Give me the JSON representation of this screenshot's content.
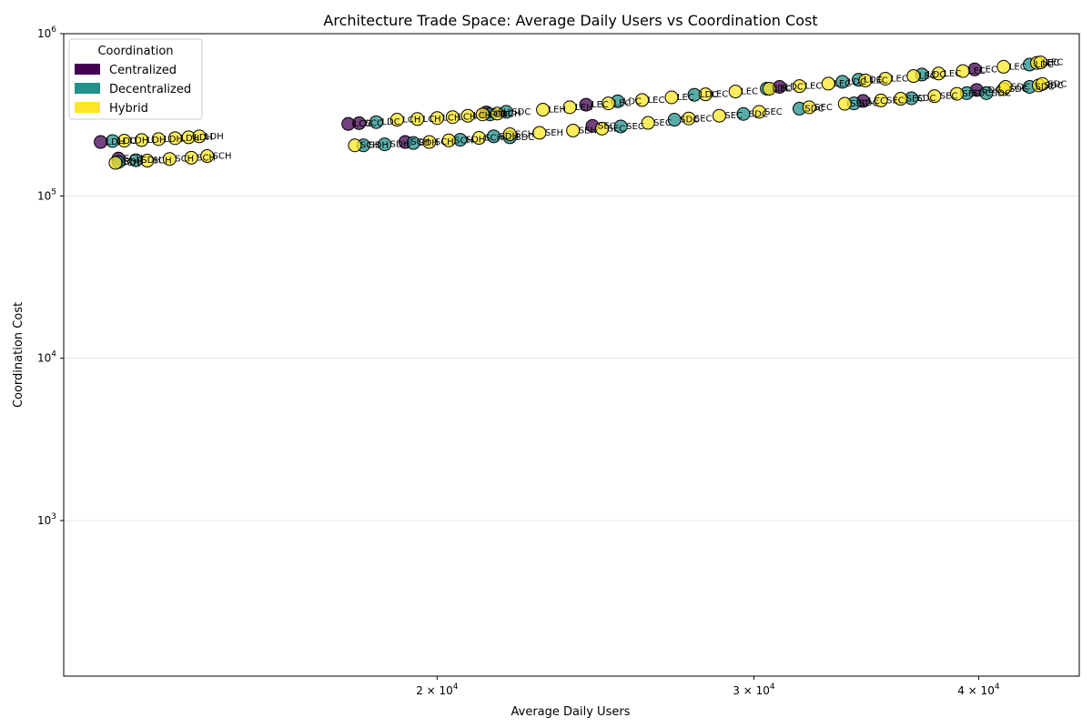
{
  "chart_data": {
    "type": "scatter",
    "title": "Architecture Trade Space: Average Daily Users vs Coordination Cost",
    "xlabel": "Average Daily Users",
    "ylabel": "Coordination Cost",
    "xscale": "log",
    "yscale": "log",
    "xlim": [
      12400,
      45500
    ],
    "ylim": [
      110,
      1000000
    ],
    "grid": "horizontal major",
    "x_ticks": [
      {
        "value": 20000,
        "base": "2 × 10",
        "exp": "4"
      },
      {
        "value": 30000,
        "base": "3 × 10",
        "exp": "4"
      },
      {
        "value": 40000,
        "base": "4 × 10",
        "exp": "4"
      }
    ],
    "y_ticks": [
      {
        "value": 1000,
        "base": "10",
        "exp": "3"
      },
      {
        "value": 10000,
        "base": "10",
        "exp": "4"
      },
      {
        "value": 100000,
        "base": "10",
        "exp": "5"
      },
      {
        "value": 1000000,
        "base": "10",
        "exp": "6"
      }
    ],
    "legend": {
      "title": "Coordination",
      "placement": "upper-left",
      "entries": [
        {
          "name": "Centralized",
          "color": "#440154"
        },
        {
          "name": "Decentralized",
          "color": "#21918c"
        },
        {
          "name": "Hybrid",
          "color": "#fde725"
        }
      ]
    },
    "colors": {
      "Centralized": "#440154",
      "Decentralized": "#21918c",
      "Hybrid": "#fde725"
    },
    "series": [
      {
        "name": "Centralized",
        "points": [
          {
            "x": 13000,
            "y": 215000,
            "label": "LDH"
          },
          {
            "x": 17850,
            "y": 278000,
            "label": "LCC"
          },
          {
            "x": 18100,
            "y": 281000,
            "label": "SCC"
          },
          {
            "x": 21300,
            "y": 327000,
            "label": "SEH"
          },
          {
            "x": 24200,
            "y": 365000,
            "label": "LEC"
          },
          {
            "x": 31000,
            "y": 470000,
            "label": "LDC"
          },
          {
            "x": 39800,
            "y": 602000,
            "label": "LEC"
          },
          {
            "x": 13300,
            "y": 170000,
            "label": "SCH"
          },
          {
            "x": 19200,
            "y": 215000,
            "label": "SCH"
          },
          {
            "x": 24400,
            "y": 270000,
            "label": "SEC"
          },
          {
            "x": 34500,
            "y": 385000,
            "label": "LCC"
          },
          {
            "x": 39900,
            "y": 450000,
            "label": "SDC"
          }
        ]
      },
      {
        "name": "Decentralized",
        "points": [
          {
            "x": 13200,
            "y": 218000,
            "label": "LDC"
          },
          {
            "x": 18500,
            "y": 285000,
            "label": "LDC"
          },
          {
            "x": 21400,
            "y": 318000,
            "label": "LDC"
          },
          {
            "x": 21850,
            "y": 330000,
            "label": "SDC"
          },
          {
            "x": 25200,
            "y": 383000,
            "label": "LDC"
          },
          {
            "x": 27800,
            "y": 420000,
            "label": "LDC"
          },
          {
            "x": 30500,
            "y": 458000,
            "label": "LDC"
          },
          {
            "x": 33600,
            "y": 505000,
            "label": "LDC"
          },
          {
            "x": 34300,
            "y": 520000,
            "label": "LDC"
          },
          {
            "x": 37200,
            "y": 560000,
            "label": "LDC"
          },
          {
            "x": 42700,
            "y": 645000,
            "label": "LDC"
          },
          {
            "x": 13300,
            "y": 162000,
            "label": "SDH"
          },
          {
            "x": 13600,
            "y": 166000,
            "label": "SDH"
          },
          {
            "x": 18200,
            "y": 205000,
            "label": "SDH"
          },
          {
            "x": 18700,
            "y": 208000,
            "label": "SDH"
          },
          {
            "x": 19400,
            "y": 212000,
            "label": "SDH"
          },
          {
            "x": 20600,
            "y": 222000,
            "label": "SDH"
          },
          {
            "x": 21500,
            "y": 233000,
            "label": "SDH"
          },
          {
            "x": 21950,
            "y": 230000,
            "label": "SDC"
          },
          {
            "x": 25300,
            "y": 268000,
            "label": "SEC"
          },
          {
            "x": 27100,
            "y": 295000,
            "label": "SDC"
          },
          {
            "x": 29600,
            "y": 320000,
            "label": "SDC"
          },
          {
            "x": 31800,
            "y": 345000,
            "label": "SDC"
          },
          {
            "x": 34100,
            "y": 372000,
            "label": "SDC"
          },
          {
            "x": 36700,
            "y": 400000,
            "label": "SDC"
          },
          {
            "x": 39400,
            "y": 430000,
            "label": "SDC"
          },
          {
            "x": 40400,
            "y": 430000,
            "label": "SDC"
          },
          {
            "x": 42700,
            "y": 470000,
            "label": "SDC"
          }
        ]
      },
      {
        "name": "Hybrid",
        "points": [
          {
            "x": 13400,
            "y": 219000,
            "label": "LDH"
          },
          {
            "x": 13700,
            "y": 221000,
            "label": "LDH"
          },
          {
            "x": 14000,
            "y": 224000,
            "label": "LDH"
          },
          {
            "x": 14300,
            "y": 227000,
            "label": "LDH"
          },
          {
            "x": 14550,
            "y": 230000,
            "label": "LDH"
          },
          {
            "x": 14750,
            "y": 233000,
            "label": "LDH"
          },
          {
            "x": 19000,
            "y": 295000,
            "label": "LCH"
          },
          {
            "x": 19500,
            "y": 298000,
            "label": "LCH"
          },
          {
            "x": 20000,
            "y": 302000,
            "label": "LCH"
          },
          {
            "x": 20400,
            "y": 306000,
            "label": "LCH"
          },
          {
            "x": 20800,
            "y": 312000,
            "label": "LCH"
          },
          {
            "x": 21200,
            "y": 318000,
            "label": "LCH"
          },
          {
            "x": 21600,
            "y": 322000,
            "label": "LCH"
          },
          {
            "x": 22900,
            "y": 340000,
            "label": "LEH"
          },
          {
            "x": 23700,
            "y": 352000,
            "label": "LEH"
          },
          {
            "x": 24900,
            "y": 372000,
            "label": "LEC"
          },
          {
            "x": 26000,
            "y": 390000,
            "label": "LEC"
          },
          {
            "x": 27000,
            "y": 405000,
            "label": "LEC"
          },
          {
            "x": 28200,
            "y": 423000,
            "label": "LEC"
          },
          {
            "x": 29300,
            "y": 440000,
            "label": "LEC"
          },
          {
            "x": 30600,
            "y": 458000,
            "label": "LEC"
          },
          {
            "x": 31800,
            "y": 475000,
            "label": "LEC"
          },
          {
            "x": 33000,
            "y": 492000,
            "label": "LEC"
          },
          {
            "x": 34600,
            "y": 515000,
            "label": "LEC"
          },
          {
            "x": 35500,
            "y": 528000,
            "label": "LEC"
          },
          {
            "x": 36800,
            "y": 548000,
            "label": "LEC"
          },
          {
            "x": 38000,
            "y": 568000,
            "label": "LEC"
          },
          {
            "x": 39200,
            "y": 588000,
            "label": "LEC"
          },
          {
            "x": 41300,
            "y": 625000,
            "label": "LEC"
          },
          {
            "x": 43100,
            "y": 660000,
            "label": "LEC"
          },
          {
            "x": 43300,
            "y": 665000,
            "label": "LEC"
          },
          {
            "x": 13250,
            "y": 160000,
            "label": "SCH"
          },
          {
            "x": 13800,
            "y": 165000,
            "label": "SCH"
          },
          {
            "x": 14200,
            "y": 169000,
            "label": "SCH"
          },
          {
            "x": 14600,
            "y": 172000,
            "label": "SCH"
          },
          {
            "x": 14900,
            "y": 176000,
            "label": "SCH"
          },
          {
            "x": 18000,
            "y": 205000,
            "label": "SCH"
          },
          {
            "x": 19800,
            "y": 215000,
            "label": "SCH"
          },
          {
            "x": 20300,
            "y": 220000,
            "label": "SCH"
          },
          {
            "x": 21100,
            "y": 228000,
            "label": "SCH"
          },
          {
            "x": 21950,
            "y": 240000,
            "label": "SCH"
          },
          {
            "x": 22800,
            "y": 245000,
            "label": "SEH"
          },
          {
            "x": 23800,
            "y": 253000,
            "label": "SEH"
          },
          {
            "x": 24700,
            "y": 260000,
            "label": "SEC"
          },
          {
            "x": 26200,
            "y": 282000,
            "label": "SEC"
          },
          {
            "x": 27600,
            "y": 300000,
            "label": "SEC"
          },
          {
            "x": 28700,
            "y": 312000,
            "label": "SEC"
          },
          {
            "x": 30200,
            "y": 330000,
            "label": "SEC"
          },
          {
            "x": 32200,
            "y": 352000,
            "label": "SEC"
          },
          {
            "x": 33700,
            "y": 370000,
            "label": "SEC"
          },
          {
            "x": 35300,
            "y": 388000,
            "label": "SEC"
          },
          {
            "x": 36200,
            "y": 397000,
            "label": "SEC"
          },
          {
            "x": 37800,
            "y": 412000,
            "label": "SEC"
          },
          {
            "x": 38900,
            "y": 426000,
            "label": "SEC"
          },
          {
            "x": 41300,
            "y": 455000,
            "label": "SDC"
          },
          {
            "x": 41400,
            "y": 470000,
            "label": "SDC"
          },
          {
            "x": 43200,
            "y": 480000,
            "label": "SDC"
          },
          {
            "x": 43400,
            "y": 490000,
            "label": "SDC"
          }
        ]
      }
    ]
  }
}
